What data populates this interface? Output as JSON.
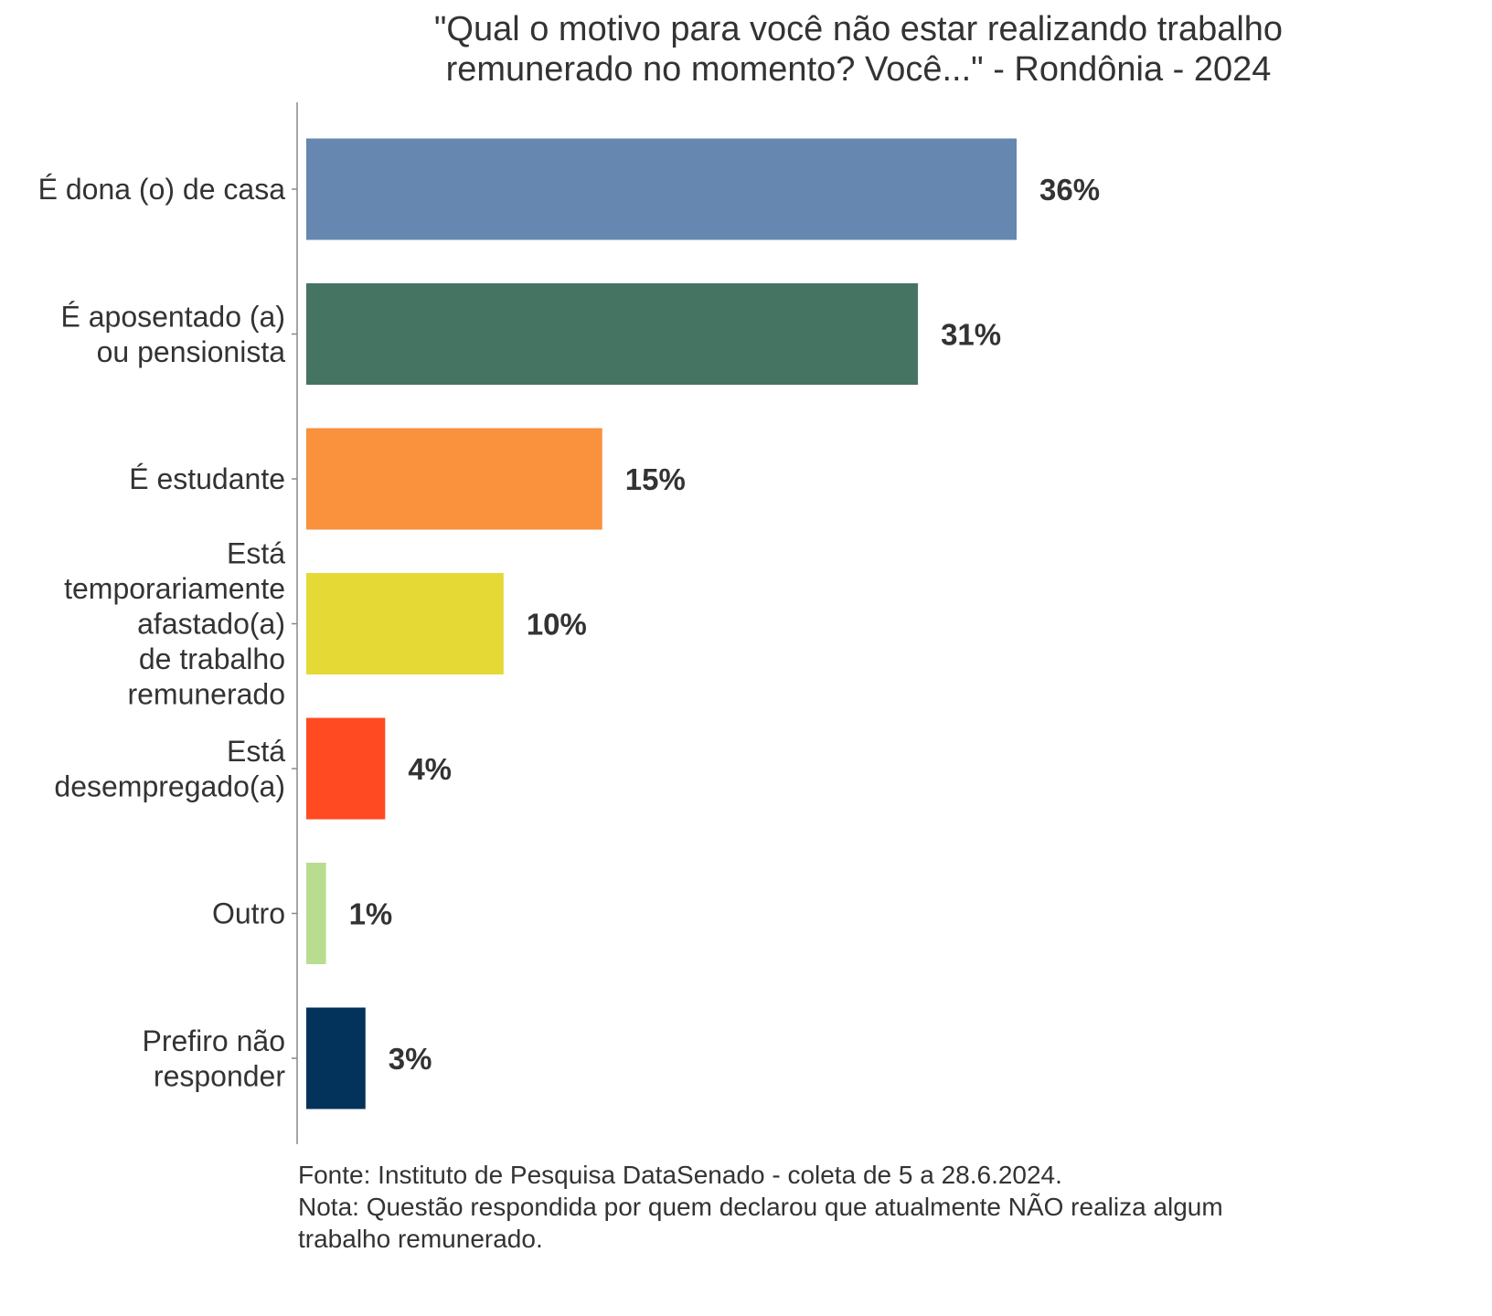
{
  "chart_data": {
    "type": "bar",
    "orientation": "horizontal",
    "title_lines": [
      "\"Qual o motivo para você não estar realizando trabalho",
      "remunerado no momento? Você...\" - Rondônia - 2024"
    ],
    "categories": [
      [
        "É dona (o) de casa"
      ],
      [
        "É aposentado (a)",
        "ou pensionista"
      ],
      [
        "É estudante"
      ],
      [
        "Está",
        "temporariamente",
        "afastado(a)",
        "de trabalho",
        "remunerado"
      ],
      [
        "Está",
        "desempregado(a)"
      ],
      [
        "Outro"
      ],
      [
        "Prefiro não",
        "responder"
      ]
    ],
    "values": [
      36,
      31,
      15,
      10,
      4,
      1,
      3
    ],
    "labels": [
      "36%",
      "31%",
      "15%",
      "10%",
      "4%",
      "1%",
      "3%"
    ],
    "colors": [
      "#6688B0",
      "#457463",
      "#F9913D",
      "#E4D935",
      "#FF4A22",
      "#B8DD8F",
      "#03325A"
    ],
    "xlim": [
      0,
      36
    ],
    "grid": false
  },
  "footer": {
    "line1": "Fonte: Instituto de Pesquisa DataSenado - coleta de 5 a 28.6.2024.",
    "line2": "Nota: Questão respondida por quem declarou que atualmente NÃO realiza algum",
    "line3": "trabalho remunerado."
  }
}
